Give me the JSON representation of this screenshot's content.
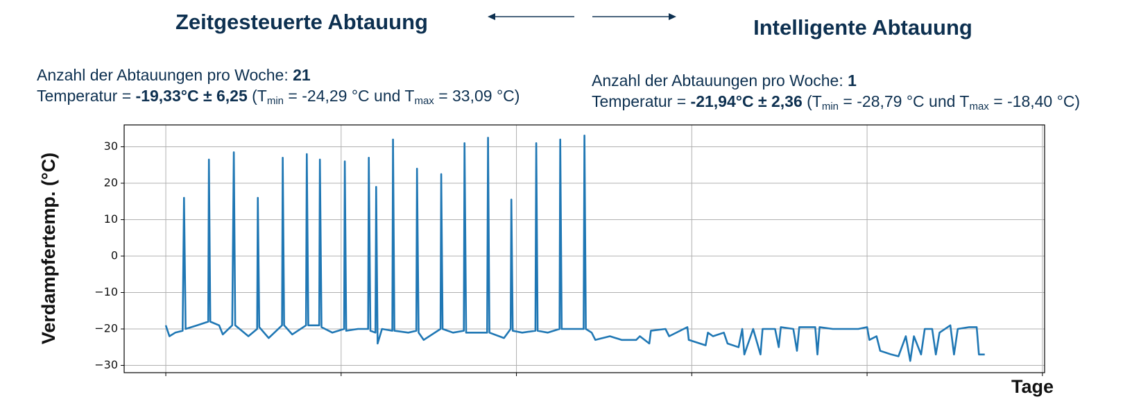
{
  "chart_data": {
    "type": "line",
    "titles": [
      "Zeitgesteuerte Abtauung",
      "Intelligente Abtauung"
    ],
    "annotations": [
      {
        "count_label": "Anzahl der Abtauungen pro Woche:",
        "count": "21",
        "temp_label": "Temperatur =",
        "temp_value": "-19,33°C ± 6,25",
        "range": [
          "(T",
          "min",
          "= -24,29 °C und T",
          "max",
          "= 33,09 °C)"
        ]
      },
      {
        "count_label": "Anzahl der Abtauungen pro Woche:",
        "count": "1",
        "temp_label": "Temperatur =",
        "temp_value": "-21,94°C ± 2,36",
        "range": [
          "(T",
          "min",
          "= -28,79 °C und T",
          "max",
          "= -18,40 °C)"
        ]
      }
    ],
    "ylabel": "Verdampfertemp. (°C)",
    "xlabel": "Tage",
    "ylim": [
      -32,
      36
    ],
    "yticks": [
      {
        "value": -30,
        "label": "−30"
      },
      {
        "value": -20,
        "label": "−20"
      },
      {
        "value": -10,
        "label": "−10"
      },
      0,
      10,
      20,
      30
    ],
    "xlim": [
      -0.2375,
      5.0125
    ],
    "xticks": [
      0,
      1,
      2,
      3,
      4,
      5
    ],
    "xtick_labels": false,
    "grid": true,
    "series": [
      {
        "color": "#1f77b4",
        "x": [
          0.0,
          0.021,
          0.054,
          0.096,
          0.104,
          0.113,
          0.179,
          0.242,
          0.246,
          0.254,
          0.304,
          0.325,
          0.379,
          0.388,
          0.396,
          0.471,
          0.521,
          0.525,
          0.533,
          0.587,
          0.663,
          0.667,
          0.675,
          0.721,
          0.8,
          0.804,
          0.813,
          0.875,
          0.879,
          0.888,
          0.95,
          1.017,
          1.021,
          1.029,
          1.096,
          1.154,
          1.158,
          1.167,
          1.196,
          1.2,
          1.208,
          1.233,
          1.292,
          1.296,
          1.304,
          1.383,
          1.429,
          1.433,
          1.442,
          1.471,
          1.567,
          1.571,
          1.579,
          1.638,
          1.7,
          1.704,
          1.713,
          1.783,
          1.833,
          1.838,
          1.846,
          1.929,
          1.967,
          1.971,
          1.979,
          2.033,
          2.108,
          2.113,
          2.121,
          2.179,
          2.246,
          2.25,
          2.258,
          2.325,
          2.383,
          2.388,
          2.396,
          2.429,
          2.45,
          2.533,
          2.6,
          2.683,
          2.704,
          2.758,
          2.767,
          2.85,
          2.871,
          2.954,
          2.975,
          2.983,
          3.079,
          3.092,
          3.121,
          3.183,
          3.204,
          3.267,
          3.288,
          3.3,
          3.35,
          3.392,
          3.404,
          3.475,
          3.496,
          3.508,
          3.579,
          3.6,
          3.613,
          3.704,
          3.717,
          3.729,
          3.804,
          3.888,
          3.95,
          4.0,
          4.013,
          4.054,
          4.075,
          4.138,
          4.179,
          4.221,
          4.246,
          4.267,
          4.308,
          4.329,
          4.371,
          4.392,
          4.413,
          4.475,
          4.496,
          4.517,
          4.583,
          4.625,
          4.638,
          4.671
        ],
        "values": [
          -19,
          -22,
          -21,
          -20.5,
          16,
          -20,
          -19,
          -18,
          26.5,
          -18,
          -19,
          -21.5,
          -19,
          28.5,
          -19,
          -22,
          -20,
          16,
          -19.5,
          -22.5,
          -19,
          27,
          -19,
          -21.5,
          -19,
          28,
          -19,
          -19,
          26.5,
          -19.5,
          -21,
          -20,
          26,
          -20.5,
          -20,
          -20,
          27,
          -20.5,
          -21,
          19,
          -24,
          -20,
          -20.5,
          32,
          -20.5,
          -21,
          -20.5,
          24,
          -21,
          -23,
          -20,
          22.5,
          -20,
          -21,
          -20.5,
          31,
          -21,
          -21,
          -21,
          32.5,
          -21,
          -22.5,
          -20,
          15.5,
          -20.5,
          -21,
          -20.5,
          31,
          -20.5,
          -21,
          -20,
          32,
          -20,
          -20,
          -20,
          33.09,
          -20,
          -21,
          -23,
          -22,
          -23,
          -23,
          -22,
          -24,
          -20.5,
          -20,
          -22,
          -20,
          -19.5,
          -23,
          -24.5,
          -21,
          -22,
          -21,
          -24,
          -25,
          -20,
          -27,
          -20,
          -27,
          -20,
          -20,
          -25,
          -19.5,
          -20,
          -26,
          -19.5,
          -19.5,
          -27,
          -19.5,
          -20,
          -20,
          -20,
          -19.5,
          -23,
          -22,
          -26,
          -27,
          -27.5,
          -22,
          -28.79,
          -22,
          -27,
          -20,
          -20,
          -27,
          -21,
          -19,
          -27,
          -20,
          -19.5,
          -19.5,
          -27,
          -27
        ]
      }
    ]
  }
}
